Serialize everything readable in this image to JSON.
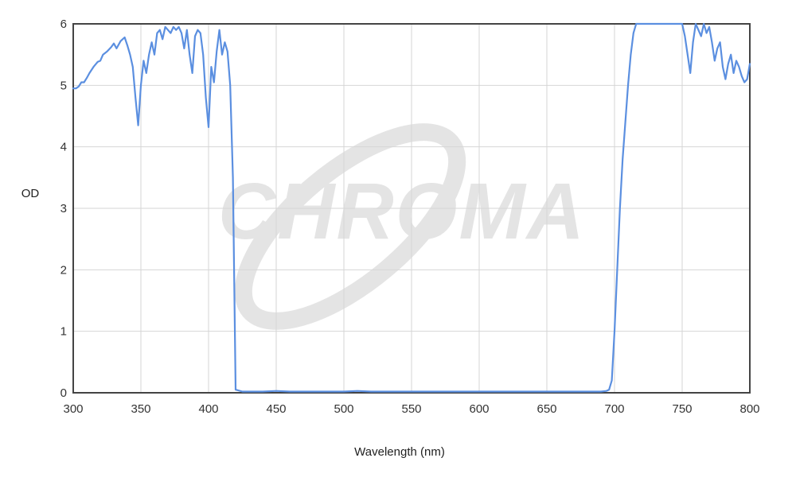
{
  "chart_data": {
    "type": "line",
    "title": "",
    "xlabel": "Wavelength (nm)",
    "ylabel": "OD",
    "xlim": [
      300,
      800
    ],
    "ylim": [
      0,
      6
    ],
    "x_ticks": [
      300,
      350,
      400,
      450,
      500,
      550,
      600,
      650,
      700,
      750,
      800
    ],
    "y_ticks": [
      0,
      1,
      2,
      3,
      4,
      5,
      6
    ],
    "grid": true,
    "legend": "none",
    "line_color": "#5b8fe0",
    "watermark": "CHROMA",
    "series": [
      {
        "name": "",
        "x": [
          300,
          302,
          304,
          306,
          308,
          310,
          312,
          315,
          318,
          320,
          322,
          325,
          328,
          330,
          332,
          335,
          338,
          340,
          342,
          344,
          346,
          348,
          350,
          352,
          354,
          356,
          358,
          360,
          362,
          364,
          366,
          368,
          370,
          372,
          374,
          376,
          378,
          380,
          382,
          384,
          386,
          388,
          390,
          392,
          394,
          396,
          398,
          400,
          402,
          404,
          406,
          408,
          410,
          412,
          414,
          416,
          418,
          420,
          425,
          430,
          440,
          450,
          460,
          470,
          480,
          490,
          500,
          510,
          520,
          530,
          540,
          550,
          560,
          570,
          580,
          590,
          600,
          610,
          620,
          630,
          640,
          650,
          660,
          670,
          680,
          690,
          694,
          696,
          698,
          700,
          702,
          704,
          706,
          708,
          710,
          712,
          714,
          716,
          718,
          720,
          730,
          740,
          750,
          752,
          754,
          756,
          758,
          760,
          762,
          764,
          766,
          768,
          770,
          772,
          774,
          776,
          778,
          780,
          782,
          784,
          786,
          788,
          790,
          792,
          794,
          796,
          798,
          800
        ],
        "y": [
          4.95,
          4.95,
          4.98,
          5.05,
          5.05,
          5.12,
          5.2,
          5.3,
          5.38,
          5.4,
          5.5,
          5.55,
          5.62,
          5.68,
          5.6,
          5.72,
          5.78,
          5.65,
          5.5,
          5.3,
          4.8,
          4.35,
          5.0,
          5.4,
          5.2,
          5.5,
          5.7,
          5.5,
          5.85,
          5.9,
          5.75,
          5.95,
          5.9,
          5.85,
          5.95,
          5.9,
          5.95,
          5.85,
          5.6,
          5.9,
          5.5,
          5.2,
          5.8,
          5.9,
          5.85,
          5.5,
          4.8,
          4.32,
          5.3,
          5.05,
          5.55,
          5.9,
          5.5,
          5.7,
          5.55,
          5.0,
          3.5,
          0.05,
          0.02,
          0.02,
          0.02,
          0.03,
          0.02,
          0.02,
          0.02,
          0.02,
          0.02,
          0.03,
          0.02,
          0.02,
          0.02,
          0.02,
          0.02,
          0.02,
          0.02,
          0.02,
          0.02,
          0.02,
          0.02,
          0.02,
          0.02,
          0.02,
          0.02,
          0.02,
          0.02,
          0.02,
          0.03,
          0.05,
          0.2,
          1.0,
          2.0,
          3.0,
          3.8,
          4.4,
          5.0,
          5.5,
          5.85,
          6.0,
          6.0,
          6.0,
          6.0,
          6.0,
          6.0,
          5.8,
          5.5,
          5.2,
          5.7,
          6.0,
          5.9,
          5.8,
          6.0,
          5.85,
          5.95,
          5.7,
          5.4,
          5.6,
          5.7,
          5.3,
          5.1,
          5.35,
          5.5,
          5.2,
          5.4,
          5.3,
          5.15,
          5.05,
          5.1,
          5.35
        ]
      }
    ]
  }
}
